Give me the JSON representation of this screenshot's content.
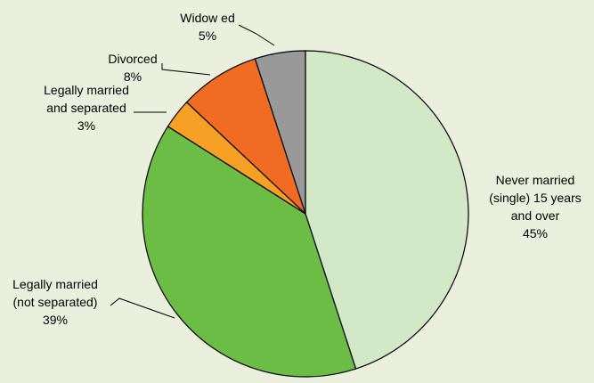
{
  "chart_data": {
    "type": "pie",
    "title": "",
    "slices": [
      {
        "label": [
          "Never married",
          "(single) 15 years",
          "and over"
        ],
        "value": 45,
        "display": "45%",
        "color": "#d3e8c7"
      },
      {
        "label": [
          "Legally married",
          "(not separated)"
        ],
        "value": 39,
        "display": "39%",
        "color": "#6cbd45"
      },
      {
        "label": [
          "Legally married",
          "and separated"
        ],
        "value": 3,
        "display": "3%",
        "color": "#f7a026"
      },
      {
        "label": [
          "Divorced"
        ],
        "value": 8,
        "display": "8%",
        "color": "#f06c22"
      },
      {
        "label": [
          "Widow ed"
        ],
        "value": 5,
        "display": "5%",
        "color": "#999999"
      }
    ],
    "legend": "none"
  }
}
